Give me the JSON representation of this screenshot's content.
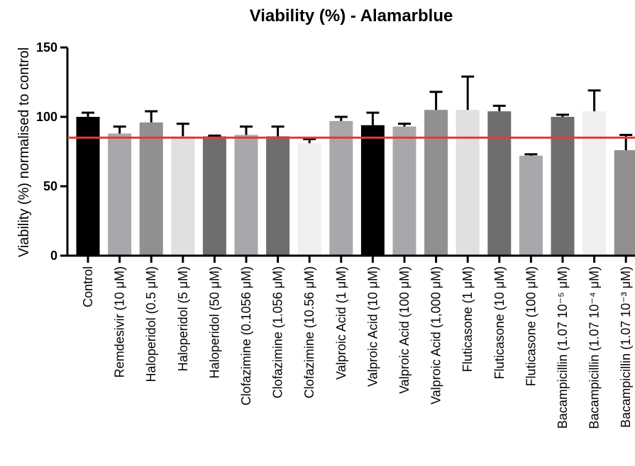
{
  "chart_data": {
    "type": "bar",
    "title": "Viability (%) - Alamarblue",
    "ylabel": "Viability (%) normalised to control",
    "xlabel": "",
    "ylim": [
      0,
      150
    ],
    "yticks": [
      0,
      50,
      100,
      150
    ],
    "reference_line": {
      "value": 85,
      "color": "#e8392b"
    },
    "categories": [
      "Control",
      "Remdesivir (10 μM)",
      "Haloperidol (0.5 μM)",
      "Haloperidol (5 μM)",
      "Haloperidol (50 μM)",
      "Clofazimine (0.1056 μM)",
      "Clofazimine (1.056 μM)",
      "Clofazimine (10.56 μM)",
      "Valproic Acid (1 μM)",
      "Valproic Acid (10 μM)",
      "Valproic Acid (100 μM)",
      "Valproic Acid (1,000 μM)",
      "Fluticasone (1 μM)",
      "Fluticasone (10 μM)",
      "Fluticasone (100 μM)",
      "Bacampicillin (1.07 10⁻⁵ μM)",
      "Bacampicillin (1.07 10⁻⁴ μM)",
      "Bacampicillin (1.07 10⁻³ μM)"
    ],
    "values": [
      100,
      88,
      96,
      86,
      86,
      87,
      86,
      81,
      97,
      94,
      93,
      105,
      105,
      104,
      72,
      100,
      104,
      76
    ],
    "error_plus": [
      3,
      5,
      8,
      9,
      0.5,
      6,
      7,
      3,
      3,
      9,
      2,
      13,
      24,
      4,
      1,
      1.5,
      15,
      11
    ],
    "colors": [
      "#000000",
      "#a8a8ac",
      "#909090",
      "#e0e0e0",
      "#6e6e6e",
      "#a8a8ac",
      "#6e6e6e",
      "#efefef",
      "#a8a8ac",
      "#000000",
      "#a8a8ac",
      "#909090",
      "#e0e0e0",
      "#6e6e6e",
      "#a8a8ac",
      "#6e6e6e",
      "#efefef",
      "#909090"
    ],
    "grid": false,
    "legend": "none"
  }
}
